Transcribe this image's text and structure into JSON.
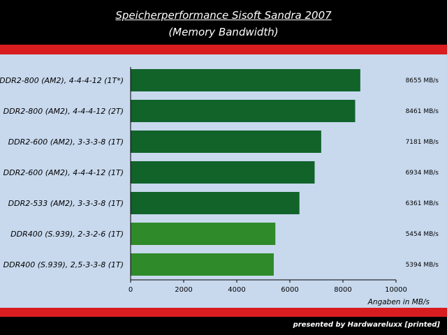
{
  "header": {
    "title": "Speicherperformance Sisoft Sandra 2007",
    "subtitle": "(Memory Bandwidth)"
  },
  "footer": {
    "credit": "presented by Hardwareluxx [printed]"
  },
  "colors": {
    "background": "#c8d9ee",
    "band": "#d81c20",
    "bar_dark": "#11632a",
    "bar_light": "#2f8a2a"
  },
  "chart_data": {
    "type": "bar",
    "orientation": "horizontal",
    "categories": [
      "DDR2-800 (AM2), 4-4-4-12 (1T*)",
      "DDR2-800 (AM2), 4-4-4-12 (2T)",
      "DDR2-600 (AM2), 3-3-3-8 (1T)",
      "DDR2-600 (AM2), 4-4-4-12 (1T)",
      "DDR2-533 (AM2), 3-3-3-8 (1T)",
      "DDR400 (S.939), 2-3-2-6 (1T)",
      "DDR400 (S.939), 2,5-3-3-8 (1T)"
    ],
    "values": [
      8655,
      8461,
      7181,
      6934,
      6361,
      5454,
      5394
    ],
    "value_labels": [
      "8655 MB/s",
      "8461 MB/s",
      "7181 MB/s",
      "6934 MB/s",
      "6361 MB/s",
      "5454 MB/s",
      "5394 MB/s"
    ],
    "bar_colors": [
      "#11632a",
      "#11632a",
      "#11632a",
      "#11632a",
      "#11632a",
      "#2f8a2a",
      "#2f8a2a"
    ],
    "xlim": [
      0,
      10000
    ],
    "xticks": [
      0,
      2000,
      4000,
      6000,
      8000,
      10000
    ],
    "xtick_labels": [
      "0",
      "2000",
      "4000",
      "6000",
      "8000",
      "10000"
    ],
    "xlabel": "Angaben in MB/s",
    "grid": false,
    "legend": false
  }
}
